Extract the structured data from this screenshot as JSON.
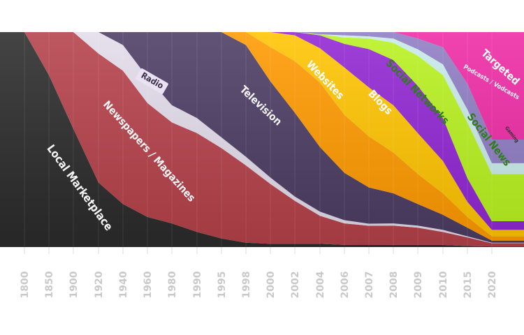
{
  "chart_data": {
    "type": "area",
    "stacked": true,
    "normalized": true,
    "title": "",
    "xlabel": "",
    "ylabel": "",
    "x": [
      "1800",
      "1850",
      "1900",
      "1920",
      "1940",
      "1960",
      "1980",
      "1990",
      "1995",
      "1998",
      "2000",
      "2002",
      "2004",
      "2006",
      "2007",
      "2008",
      "2009",
      "2010",
      "2015",
      "2020"
    ],
    "grid": true,
    "legend": "none",
    "series": [
      {
        "name": "Local Marketplace",
        "color": "#2b2b2b",
        "values": [
          100,
          80,
          55,
          30,
          20,
          14,
          11,
          7,
          4,
          2,
          1.5,
          1.5,
          1.5,
          1,
          1,
          1,
          1,
          1,
          0.5,
          0.3
        ]
      },
      {
        "name": "Newspapers / Magazines",
        "color": "#b5414a",
        "values": [
          0,
          20,
          45,
          60,
          62,
          53,
          47,
          46,
          42,
          36,
          28,
          20,
          13,
          10,
          9,
          9,
          8,
          6,
          4,
          1.5
        ]
      },
      {
        "name": "Radio",
        "color": "#e2dcea",
        "values": [
          0,
          0,
          0,
          10,
          12,
          12,
          8,
          7,
          5,
          4,
          3,
          2,
          2,
          1.5,
          1,
          1,
          1,
          1,
          0.5,
          0.2
        ]
      },
      {
        "name": "Television",
        "color": "#4c3c63",
        "values": [
          0,
          0,
          0,
          0,
          6,
          21,
          34,
          40,
          49,
          52,
          45,
          39,
          30,
          22,
          17,
          14,
          10,
          7,
          4,
          1
        ]
      },
      {
        "name": "Websites",
        "color": "#ff9a00",
        "values": [
          0,
          0,
          0,
          0,
          0,
          0,
          0,
          0,
          0,
          6,
          16,
          24,
          30,
          27,
          24,
          19,
          14,
          10,
          5,
          2
        ]
      },
      {
        "name": "Blogs",
        "color": "#ffc400",
        "values": [
          0,
          0,
          0,
          0,
          0,
          0,
          0,
          0,
          0,
          0,
          7,
          12,
          16,
          22,
          23,
          22,
          19,
          15,
          7,
          3
        ]
      },
      {
        "name": "Social Networks",
        "color": "#9126d3",
        "values": [
          0,
          0,
          0,
          0,
          0,
          0,
          0,
          0,
          0,
          0,
          0,
          1.5,
          6,
          11,
          18,
          21,
          22,
          20,
          11,
          4
        ]
      },
      {
        "name": "Social News",
        "color": "#b8f21f",
        "values": [
          0,
          0,
          0,
          0,
          0,
          0,
          0,
          0,
          0,
          0,
          0,
          0,
          0.5,
          3,
          5,
          8,
          14,
          20,
          26,
          22
        ]
      },
      {
        "name": "Gaming",
        "color": "#c9eaea",
        "values": [
          0,
          0,
          0,
          0,
          0,
          0,
          0,
          0,
          0,
          0,
          0,
          0,
          0,
          1,
          1,
          2,
          3,
          5,
          6,
          5
        ]
      },
      {
        "name": "Podcasts / Vodcasts",
        "color": "#8e7cc3",
        "values": [
          0,
          0,
          0,
          0,
          0,
          0,
          0,
          0,
          0,
          0,
          0,
          0,
          1,
          1.5,
          2,
          3,
          5,
          8,
          12,
          11
        ]
      },
      {
        "name": "Targeted",
        "color": "#ee2aa5",
        "values": [
          0,
          0,
          0,
          0,
          0,
          0,
          0,
          0,
          0,
          0,
          0,
          0,
          0,
          0,
          0,
          0,
          3,
          7,
          24,
          50
        ]
      }
    ],
    "labels": [
      {
        "text": "Local Marketplace",
        "color": "#f4f4f4"
      },
      {
        "text": "Newspapers / Magazines",
        "color": "#f4f4f4"
      },
      {
        "text": "Radio",
        "color": "#3a2f4a"
      },
      {
        "text": "Television",
        "color": "#f4f4f4"
      },
      {
        "text": "Websites",
        "color": "#ffffff"
      },
      {
        "text": "Blogs",
        "color": "#ffffff"
      },
      {
        "text": "Social Networks",
        "color": "#2e7d1a"
      },
      {
        "text": "Social News",
        "color": "#2e7d1a"
      },
      {
        "text": "Podcasts / Vodcasts",
        "color": "#f4f4f4"
      },
      {
        "text": "Gaming",
        "color": "#333333"
      },
      {
        "text": "Targeted",
        "color": "#ffffff"
      }
    ]
  }
}
